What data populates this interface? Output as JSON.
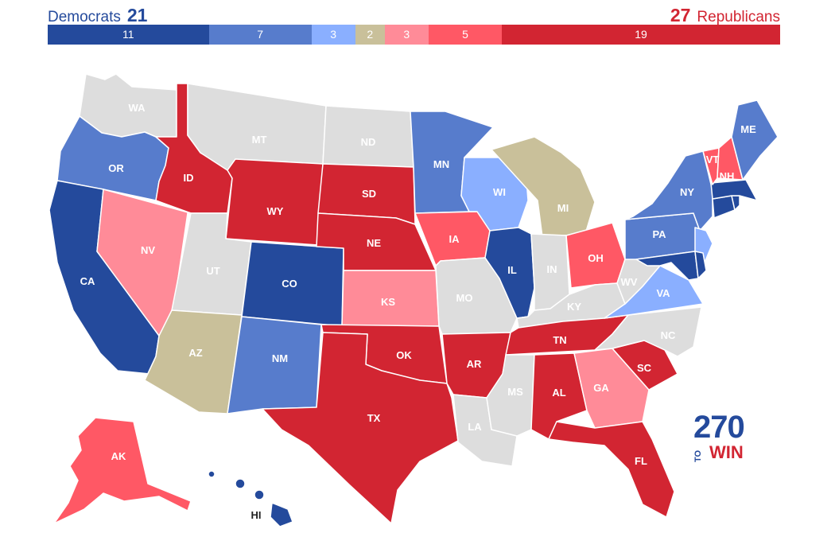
{
  "header": {
    "dem_label": "Democrats",
    "dem_count": "21",
    "rep_label": "Republicans",
    "rep_count": "27"
  },
  "colors": {
    "safe_d": "#244a9c",
    "likely_d": "#577ccc",
    "lean_d": "#8aafff",
    "tossup": "#c9c09a",
    "lean_r": "#ff8b98",
    "likely_r": "#ff5865",
    "safe_r": "#d22532",
    "no_race": "#dddddd"
  },
  "ratings_bar": [
    {
      "value": 11,
      "label": "11",
      "color": "#244a9c"
    },
    {
      "value": 7,
      "label": "7",
      "color": "#577ccc"
    },
    {
      "value": 3,
      "label": "3",
      "color": "#8aafff"
    },
    {
      "value": 2,
      "label": "2",
      "color": "#c9c09a"
    },
    {
      "value": 3,
      "label": "3",
      "color": "#ff8b98"
    },
    {
      "value": 5,
      "label": "5",
      "color": "#ff5865"
    },
    {
      "value": 19,
      "label": "19",
      "color": "#d22532"
    }
  ],
  "states": [
    {
      "code": "WA",
      "rating": "no_race"
    },
    {
      "code": "OR",
      "rating": "likely_d"
    },
    {
      "code": "CA",
      "rating": "safe_d"
    },
    {
      "code": "ID",
      "rating": "safe_r"
    },
    {
      "code": "NV",
      "rating": "lean_r"
    },
    {
      "code": "MT",
      "rating": "no_race"
    },
    {
      "code": "WY",
      "rating": "safe_r"
    },
    {
      "code": "UT",
      "rating": "no_race"
    },
    {
      "code": "AZ",
      "rating": "tossup"
    },
    {
      "code": "CO",
      "rating": "safe_d"
    },
    {
      "code": "NM",
      "rating": "likely_d"
    },
    {
      "code": "ND",
      "rating": "no_race"
    },
    {
      "code": "SD",
      "rating": "safe_r"
    },
    {
      "code": "NE",
      "rating": "safe_r"
    },
    {
      "code": "KS",
      "rating": "lean_r"
    },
    {
      "code": "OK",
      "rating": "safe_r"
    },
    {
      "code": "TX",
      "rating": "safe_r"
    },
    {
      "code": "MN",
      "rating": "likely_d"
    },
    {
      "code": "IA",
      "rating": "likely_r"
    },
    {
      "code": "MO",
      "rating": "no_race"
    },
    {
      "code": "AR",
      "rating": "safe_r"
    },
    {
      "code": "LA",
      "rating": "no_race"
    },
    {
      "code": "WI",
      "rating": "lean_d"
    },
    {
      "code": "IL",
      "rating": "safe_d"
    },
    {
      "code": "MI",
      "rating": "tossup"
    },
    {
      "code": "IN",
      "rating": "no_race"
    },
    {
      "code": "OH",
      "rating": "likely_r"
    },
    {
      "code": "KY",
      "rating": "no_race"
    },
    {
      "code": "TN",
      "rating": "safe_r"
    },
    {
      "code": "MS",
      "rating": "no_race"
    },
    {
      "code": "AL",
      "rating": "safe_r"
    },
    {
      "code": "GA",
      "rating": "lean_r"
    },
    {
      "code": "FL",
      "rating": "safe_r"
    },
    {
      "code": "SC",
      "rating": "safe_r"
    },
    {
      "code": "NC",
      "rating": "no_race"
    },
    {
      "code": "VA",
      "rating": "lean_d"
    },
    {
      "code": "WV",
      "rating": "no_race"
    },
    {
      "code": "PA",
      "rating": "likely_d"
    },
    {
      "code": "NY",
      "rating": "likely_d"
    },
    {
      "code": "NJ",
      "rating": "lean_d"
    },
    {
      "code": "MD",
      "rating": "safe_d"
    },
    {
      "code": "DE",
      "rating": "safe_d"
    },
    {
      "code": "CT",
      "rating": "safe_d"
    },
    {
      "code": "MA",
      "rating": "safe_d"
    },
    {
      "code": "RI",
      "rating": "safe_d"
    },
    {
      "code": "VT",
      "rating": "likely_r"
    },
    {
      "code": "NH",
      "rating": "likely_r"
    },
    {
      "code": "ME",
      "rating": "likely_d"
    },
    {
      "code": "AK",
      "rating": "likely_r"
    },
    {
      "code": "HI",
      "rating": "safe_d"
    }
  ],
  "logo": {
    "line1": "270",
    "line2": "TO",
    "line3": "WIN"
  }
}
